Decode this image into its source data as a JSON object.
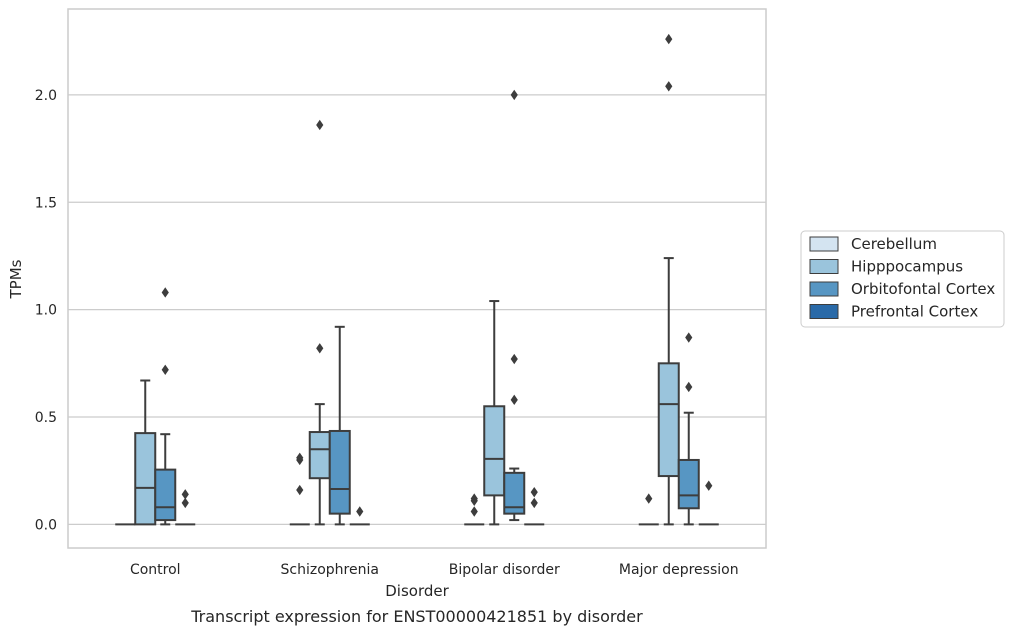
{
  "caption": "Transcript expression for ENST00000421851 by disorder",
  "chart_data": {
    "type": "box",
    "xlabel": "Disorder",
    "ylabel": "TPMs",
    "ylim": [
      -0.11,
      2.4
    ],
    "yticks": [
      0.0,
      0.5,
      1.0,
      1.5,
      2.0
    ],
    "ytick_labels": [
      "0.0",
      "0.5",
      "1.0",
      "1.5",
      "2.0"
    ],
    "grid": "horizontal",
    "legend_position": "right",
    "categories": [
      "Control",
      "Schizophrenia",
      "Bipolar disorder",
      "Major depression"
    ],
    "series": [
      {
        "name": "Cerebellum",
        "color": "#d4e4f1",
        "boxes": [
          {
            "q1": 0.0,
            "median": 0.0,
            "q3": 0.0,
            "whisker_low": 0.0,
            "whisker_high": 0.0,
            "outliers": []
          },
          {
            "q1": 0.0,
            "median": 0.0,
            "q3": 0.0,
            "whisker_low": 0.0,
            "whisker_high": 0.0,
            "outliers": [
              0.16,
              0.3,
              0.31
            ]
          },
          {
            "q1": 0.0,
            "median": 0.0,
            "q3": 0.0,
            "whisker_low": 0.0,
            "whisker_high": 0.0,
            "outliers": [
              0.06,
              0.11,
              0.12
            ]
          },
          {
            "q1": 0.0,
            "median": 0.0,
            "q3": 0.0,
            "whisker_low": 0.0,
            "whisker_high": 0.0,
            "outliers": [
              0.12
            ]
          }
        ]
      },
      {
        "name": "Hipppocampus",
        "color": "#9ac4dc",
        "boxes": [
          {
            "q1": 0.0,
            "median": 0.17,
            "q3": 0.425,
            "whisker_low": 0.0,
            "whisker_high": 0.67,
            "outliers": []
          },
          {
            "q1": 0.215,
            "median": 0.35,
            "q3": 0.43,
            "whisker_low": 0.0,
            "whisker_high": 0.56,
            "outliers": [
              0.82,
              1.86
            ]
          },
          {
            "q1": 0.135,
            "median": 0.305,
            "q3": 0.55,
            "whisker_low": 0.0,
            "whisker_high": 1.04,
            "outliers": []
          },
          {
            "q1": 0.225,
            "median": 0.56,
            "q3": 0.75,
            "whisker_low": 0.0,
            "whisker_high": 1.24,
            "outliers": [
              2.04,
              2.26
            ]
          }
        ]
      },
      {
        "name": "Orbitofontal Cortex",
        "color": "#5796c3",
        "boxes": [
          {
            "q1": 0.02,
            "median": 0.08,
            "q3": 0.255,
            "whisker_low": 0.0,
            "whisker_high": 0.42,
            "outliers": [
              0.72,
              1.08
            ]
          },
          {
            "q1": 0.05,
            "median": 0.165,
            "q3": 0.435,
            "whisker_low": 0.0,
            "whisker_high": 0.92,
            "outliers": []
          },
          {
            "q1": 0.05,
            "median": 0.08,
            "q3": 0.24,
            "whisker_low": 0.02,
            "whisker_high": 0.26,
            "outliers": [
              0.58,
              0.77,
              2.0
            ]
          },
          {
            "q1": 0.075,
            "median": 0.135,
            "q3": 0.3,
            "whisker_low": 0.0,
            "whisker_high": 0.52,
            "outliers": [
              0.64,
              0.87
            ]
          }
        ]
      },
      {
        "name": "Prefrontal Cortex",
        "color": "#2a6aa8",
        "boxes": [
          {
            "q1": 0.0,
            "median": 0.0,
            "q3": 0.0,
            "whisker_low": 0.0,
            "whisker_high": 0.0,
            "outliers": [
              0.1,
              0.14
            ]
          },
          {
            "q1": 0.0,
            "median": 0.0,
            "q3": 0.0,
            "whisker_low": 0.0,
            "whisker_high": 0.0,
            "outliers": [
              0.06
            ]
          },
          {
            "q1": 0.0,
            "median": 0.0,
            "q3": 0.0,
            "whisker_low": 0.0,
            "whisker_high": 0.0,
            "outliers": [
              0.1,
              0.15
            ]
          },
          {
            "q1": 0.0,
            "median": 0.0,
            "q3": 0.0,
            "whisker_low": 0.0,
            "whisker_high": 0.0,
            "outliers": [
              0.18
            ]
          }
        ]
      }
    ]
  }
}
